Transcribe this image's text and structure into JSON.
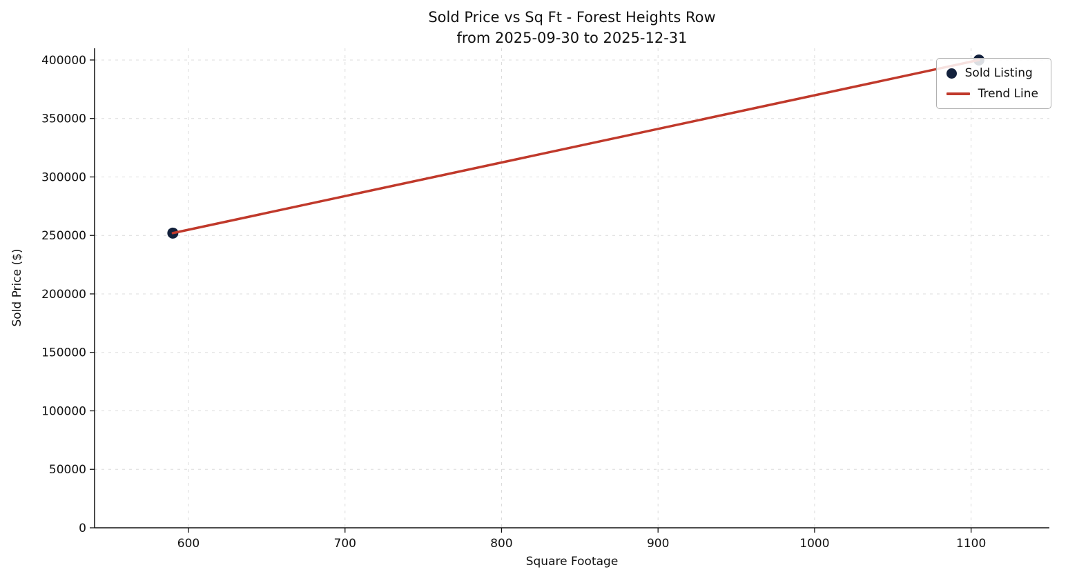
{
  "chart_data": {
    "type": "scatter",
    "title": "Sold Price vs Sq Ft - Forest Heights Row",
    "subtitle": "from 2025-09-30 to 2025-12-31",
    "xlabel": "Square Footage",
    "ylabel": "Sold Price ($)",
    "xlim": [
      540,
      1150
    ],
    "ylim": [
      0,
      410000
    ],
    "x_ticks": [
      600,
      700,
      800,
      900,
      1000,
      1100
    ],
    "y_ticks": [
      0,
      50000,
      100000,
      150000,
      200000,
      250000,
      300000,
      350000,
      400000
    ],
    "grid": true,
    "grid_style": "dashed",
    "legend_position": "upper right",
    "series": [
      {
        "name": "Sold Listing",
        "type": "scatter",
        "color": "#13213c",
        "points": [
          {
            "x": 590,
            "y": 252000
          },
          {
            "x": 1105,
            "y": 400000
          }
        ]
      },
      {
        "name": "Trend Line",
        "type": "line",
        "color": "#c0392b",
        "points": [
          {
            "x": 590,
            "y": 252000
          },
          {
            "x": 1105,
            "y": 400000
          }
        ]
      }
    ]
  }
}
